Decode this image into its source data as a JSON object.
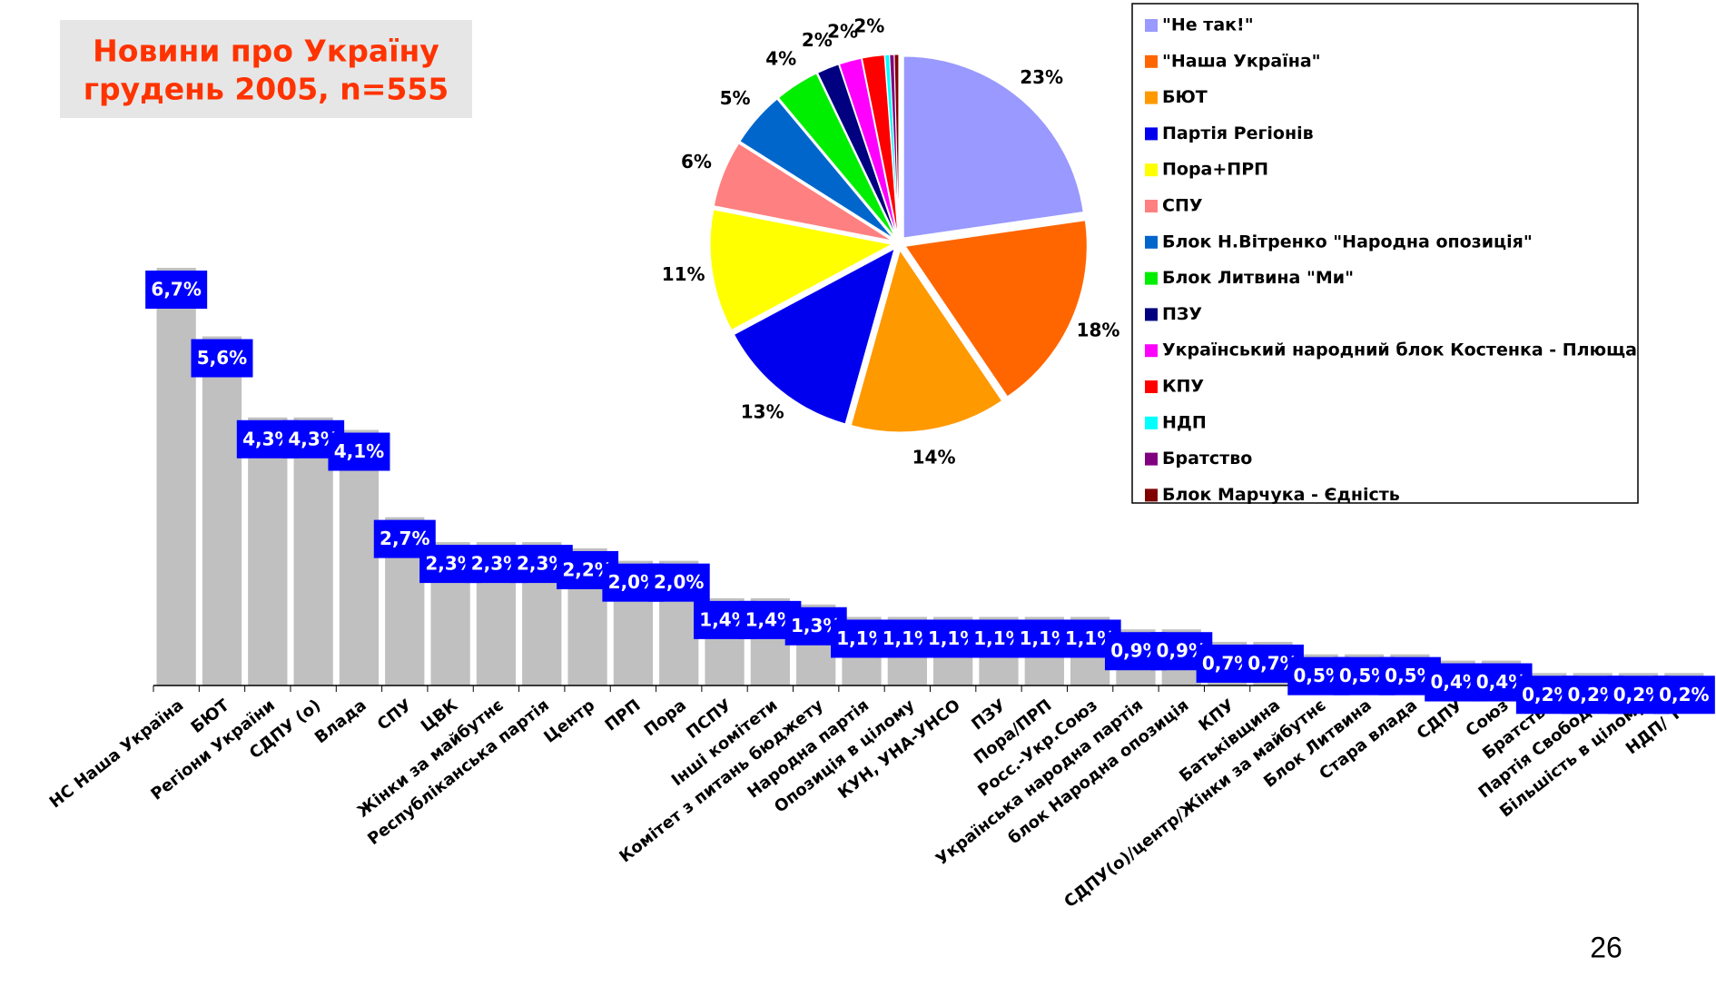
{
  "title": [
    "Новини про Україну",
    "грудень 2005, n=555"
  ],
  "page_number": "26",
  "chart_data": [
    {
      "type": "bar",
      "categories": [
        "НС Наша Україна",
        "БЮТ",
        "Регіони України",
        "СДПУ (о)",
        "Влада",
        "СПУ",
        "ЦВК",
        "Жінки за майбутнє",
        "Республіканська партія",
        "Центр",
        "ПРП",
        "Пора",
        "ПСПУ",
        "Інші комітети",
        "Комітет з питань бюджету",
        "Народна партія",
        "Опозиція в цілому",
        "КУН, УНА-УНСО",
        "ПЗУ",
        "Пора/ПРП",
        "Росс.-Укр.Союз",
        "Українська народна партія",
        "блок Народна опозиція",
        "КПУ",
        "Батьківщина",
        "СДПУ(о)/центр/Жінки за майбутнє",
        "Блок Литвина",
        "Стара влада",
        "СДПУ",
        "Союз",
        "Братство",
        "Партія Свободи",
        "Більшість в цілому",
        "НДП/ ТУ"
      ],
      "values": [
        6.7,
        5.6,
        4.3,
        4.3,
        4.1,
        2.7,
        2.3,
        2.3,
        2.3,
        2.2,
        2.0,
        2.0,
        1.4,
        1.4,
        1.3,
        1.1,
        1.1,
        1.1,
        1.1,
        1.1,
        1.1,
        0.9,
        0.9,
        0.7,
        0.7,
        0.5,
        0.5,
        0.5,
        0.4,
        0.4,
        0.2,
        0.2,
        0.2,
        0.2
      ],
      "value_labels": [
        "6,7%",
        "5,6%",
        "4,3%",
        "4,3%",
        "4,1%",
        "2,7%",
        "2,3%",
        "2,3%",
        "2,3%",
        "2,2%",
        "2,0%",
        "2,0%",
        "1,4%",
        "1,4%",
        "1,3%",
        "1,1%",
        "1,1%",
        "1,1%",
        "1,1%",
        "1,1%",
        "1,1%",
        "0,9%",
        "0,9%",
        "0,7%",
        "0,7%",
        "0,5%",
        "0,5%",
        "0,5%",
        "0,4%",
        "0,4%",
        "0,2%",
        "0,2%",
        "0,2%",
        "0,2%"
      ],
      "color": "#c0c0c0",
      "label_color": "#0000ff"
    },
    {
      "type": "pie",
      "categories": [
        "\"Не так!\"",
        "\"Наша Україна\"",
        "БЮТ",
        "Партія Регіонів",
        "Пора+ПРП",
        "СПУ",
        "Блок Н.Вітренко \"Народна опозиція\"",
        "Блок Литвина \"Ми\"",
        "ПЗУ",
        "Український народний блок Костенка - Плюща",
        "КПУ",
        "НДП",
        "Братство",
        "Блок Марчука - Єдність"
      ],
      "values": [
        23,
        18,
        14,
        13,
        11,
        6,
        5,
        4,
        2,
        2,
        2,
        0.4,
        0.4,
        0.4
      ],
      "value_labels": [
        "23%",
        "18%",
        "14%",
        "13%",
        "11%",
        "6%",
        "5%",
        "4%",
        "2%",
        "2%",
        "2%",
        null,
        null,
        null
      ],
      "colors": [
        "#9999ff",
        "#ff6600",
        "#ff9900",
        "#0000ee",
        "#ffff00",
        "#ff8080",
        "#0066cc",
        "#00ee00",
        "#000080",
        "#ff00ff",
        "#ff0000",
        "#00ffff",
        "#800080",
        "#800000"
      ],
      "legend": "right"
    }
  ]
}
